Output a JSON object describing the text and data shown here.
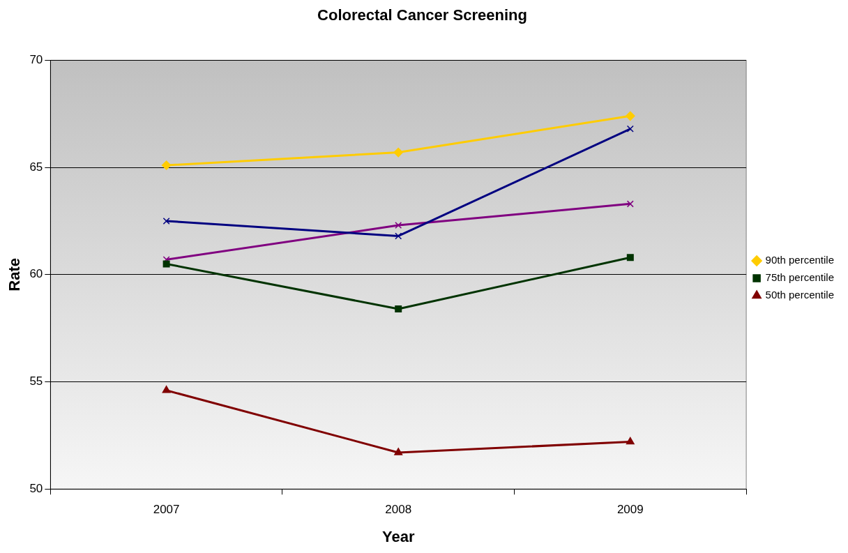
{
  "chart_data": {
    "type": "line",
    "title": "Colorectal Cancer Screening",
    "xlabel": "Year",
    "ylabel": "Rate",
    "categories": [
      "2007",
      "2008",
      "2009"
    ],
    "series": [
      {
        "name": "90th percentile",
        "color": "#ffcc00",
        "marker": "diamond",
        "values": [
          65.1,
          65.7,
          67.4
        ]
      },
      {
        "name": "75th percentile",
        "color": "#003300",
        "marker": "square",
        "values": [
          60.5,
          58.4,
          60.8
        ]
      },
      {
        "name": "50th percentile",
        "color": "#800000",
        "marker": "triangle",
        "values": [
          54.6,
          51.7,
          52.2
        ]
      },
      {
        "color": "#000080",
        "marker": "cross",
        "values": [
          62.5,
          61.8,
          66.8
        ]
      },
      {
        "color": "#800080",
        "marker": "cross",
        "values": [
          60.7,
          62.3,
          63.3
        ]
      }
    ],
    "ylim": [
      50,
      70
    ],
    "yticks": [
      50,
      55,
      60,
      65,
      70
    ],
    "grid": "y",
    "legend": "right",
    "line_style": "solid"
  }
}
